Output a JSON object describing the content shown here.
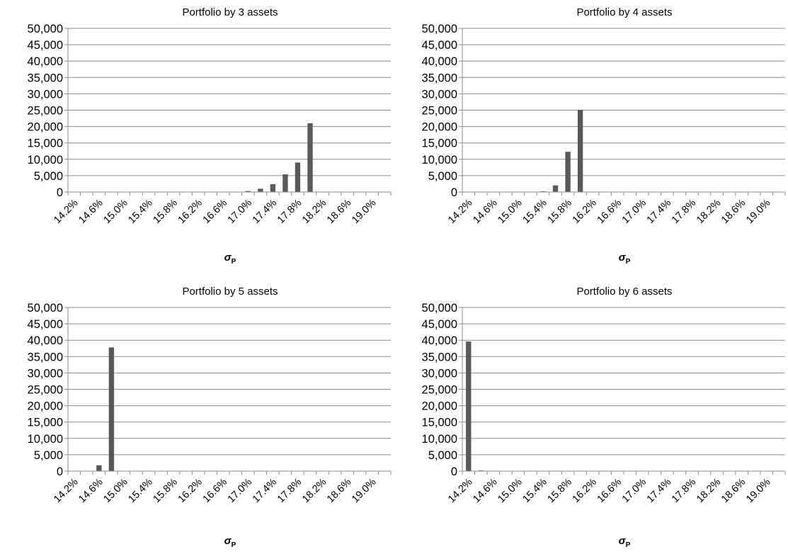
{
  "chart_data": [
    {
      "type": "bar",
      "title": "Portfolio by 3 assets",
      "xlabel": "σ",
      "xlabel_sub": "P",
      "ylim": [
        0,
        50000
      ],
      "yticks": [
        "0",
        "5,000",
        "10,000",
        "15,000",
        "20,000",
        "25,000",
        "30,000",
        "35,000",
        "40,000",
        "45,000",
        "50,000"
      ],
      "xticks": [
        "14.2%",
        "14.6%",
        "15.0%",
        "15.4%",
        "15.8%",
        "16.2%",
        "16.6%",
        "17.0%",
        "17.4%",
        "17.8%",
        "18.2%",
        "18.6%",
        "19.0%"
      ],
      "categories": [
        "14.2%",
        "14.4%",
        "14.6%",
        "14.8%",
        "15.0%",
        "15.2%",
        "15.4%",
        "15.6%",
        "15.8%",
        "16.0%",
        "16.2%",
        "16.4%",
        "16.6%",
        "16.8%",
        "17.0%",
        "17.2%",
        "17.4%",
        "17.6%",
        "17.8%",
        "18.0%",
        "18.2%",
        "18.4%",
        "18.6%",
        "18.8%",
        "19.0%",
        "19.2%"
      ],
      "values": [
        0,
        0,
        0,
        0,
        0,
        0,
        0,
        0,
        0,
        0,
        0,
        0,
        0,
        0,
        300,
        1000,
        2400,
        5400,
        9000,
        21000,
        0,
        0,
        0,
        0,
        0,
        0
      ],
      "grid": true,
      "bar_color": "#595959"
    },
    {
      "type": "bar",
      "title": "Portfolio by 4 assets",
      "xlabel": "σ",
      "xlabel_sub": "P",
      "ylim": [
        0,
        50000
      ],
      "yticks": [
        "0",
        "5,000",
        "10,000",
        "15,000",
        "20,000",
        "25,000",
        "30,000",
        "35,000",
        "40,000",
        "45,000",
        "50,000"
      ],
      "xticks": [
        "14.2%",
        "14.6%",
        "15.0%",
        "15.4%",
        "15.8%",
        "16.2%",
        "16.6%",
        "17.0%",
        "17.4%",
        "17.8%",
        "18.2%",
        "18.6%",
        "19.0%"
      ],
      "categories": [
        "14.2%",
        "14.4%",
        "14.6%",
        "14.8%",
        "15.0%",
        "15.2%",
        "15.4%",
        "15.6%",
        "15.8%",
        "16.0%",
        "16.2%",
        "16.4%",
        "16.6%",
        "16.8%",
        "17.0%",
        "17.2%",
        "17.4%",
        "17.6%",
        "17.8%",
        "18.0%",
        "18.2%",
        "18.4%",
        "18.6%",
        "18.8%",
        "19.0%",
        "19.2%"
      ],
      "values": [
        0,
        0,
        0,
        0,
        0,
        0,
        200,
        2000,
        12300,
        25100,
        0,
        0,
        0,
        0,
        0,
        0,
        0,
        0,
        0,
        0,
        0,
        0,
        0,
        0,
        0,
        0
      ],
      "grid": true,
      "bar_color": "#595959"
    },
    {
      "type": "bar",
      "title": "Portfolio by 5 assets",
      "xlabel": "σ",
      "xlabel_sub": "P",
      "ylim": [
        0,
        50000
      ],
      "yticks": [
        "0",
        "5,000",
        "10,000",
        "15,000",
        "20,000",
        "25,000",
        "30,000",
        "35,000",
        "40,000",
        "45,000",
        "50,000"
      ],
      "xticks": [
        "14.2%",
        "14.6%",
        "15.0%",
        "15.4%",
        "15.8%",
        "16.2%",
        "16.6%",
        "17.0%",
        "17.4%",
        "17.8%",
        "18.2%",
        "18.6%",
        "19.0%"
      ],
      "categories": [
        "14.2%",
        "14.4%",
        "14.6%",
        "14.8%",
        "15.0%",
        "15.2%",
        "15.4%",
        "15.6%",
        "15.8%",
        "16.0%",
        "16.2%",
        "16.4%",
        "16.6%",
        "16.8%",
        "17.0%",
        "17.2%",
        "17.4%",
        "17.6%",
        "17.8%",
        "18.0%",
        "18.2%",
        "18.4%",
        "18.6%",
        "18.8%",
        "19.0%",
        "19.2%"
      ],
      "values": [
        0,
        0,
        1800,
        37800,
        0,
        0,
        0,
        0,
        0,
        0,
        0,
        0,
        0,
        0,
        0,
        0,
        0,
        0,
        0,
        0,
        0,
        0,
        0,
        0,
        0,
        0
      ],
      "grid": true,
      "bar_color": "#595959"
    },
    {
      "type": "bar",
      "title": "Portfolio by 6 assets",
      "xlabel": "σ",
      "xlabel_sub": "P",
      "ylim": [
        0,
        50000
      ],
      "yticks": [
        "0",
        "5,000",
        "10,000",
        "15,000",
        "20,000",
        "25,000",
        "30,000",
        "35,000",
        "40,000",
        "45,000",
        "50,000"
      ],
      "xticks": [
        "14.2%",
        "14.6%",
        "15.0%",
        "15.4%",
        "15.8%",
        "16.2%",
        "16.6%",
        "17.0%",
        "17.4%",
        "17.8%",
        "18.2%",
        "18.6%",
        "19.0%"
      ],
      "categories": [
        "14.2%",
        "14.4%",
        "14.6%",
        "14.8%",
        "15.0%",
        "15.2%",
        "15.4%",
        "15.6%",
        "15.8%",
        "16.0%",
        "16.2%",
        "16.4%",
        "16.6%",
        "16.8%",
        "17.0%",
        "17.2%",
        "17.4%",
        "17.6%",
        "17.8%",
        "18.0%",
        "18.2%",
        "18.4%",
        "18.6%",
        "18.8%",
        "19.0%",
        "19.2%"
      ],
      "values": [
        39600,
        200,
        0,
        0,
        0,
        0,
        0,
        0,
        0,
        0,
        0,
        0,
        0,
        0,
        0,
        0,
        0,
        0,
        0,
        0,
        0,
        0,
        0,
        0,
        0,
        0
      ],
      "grid": true,
      "bar_color": "#595959"
    }
  ]
}
